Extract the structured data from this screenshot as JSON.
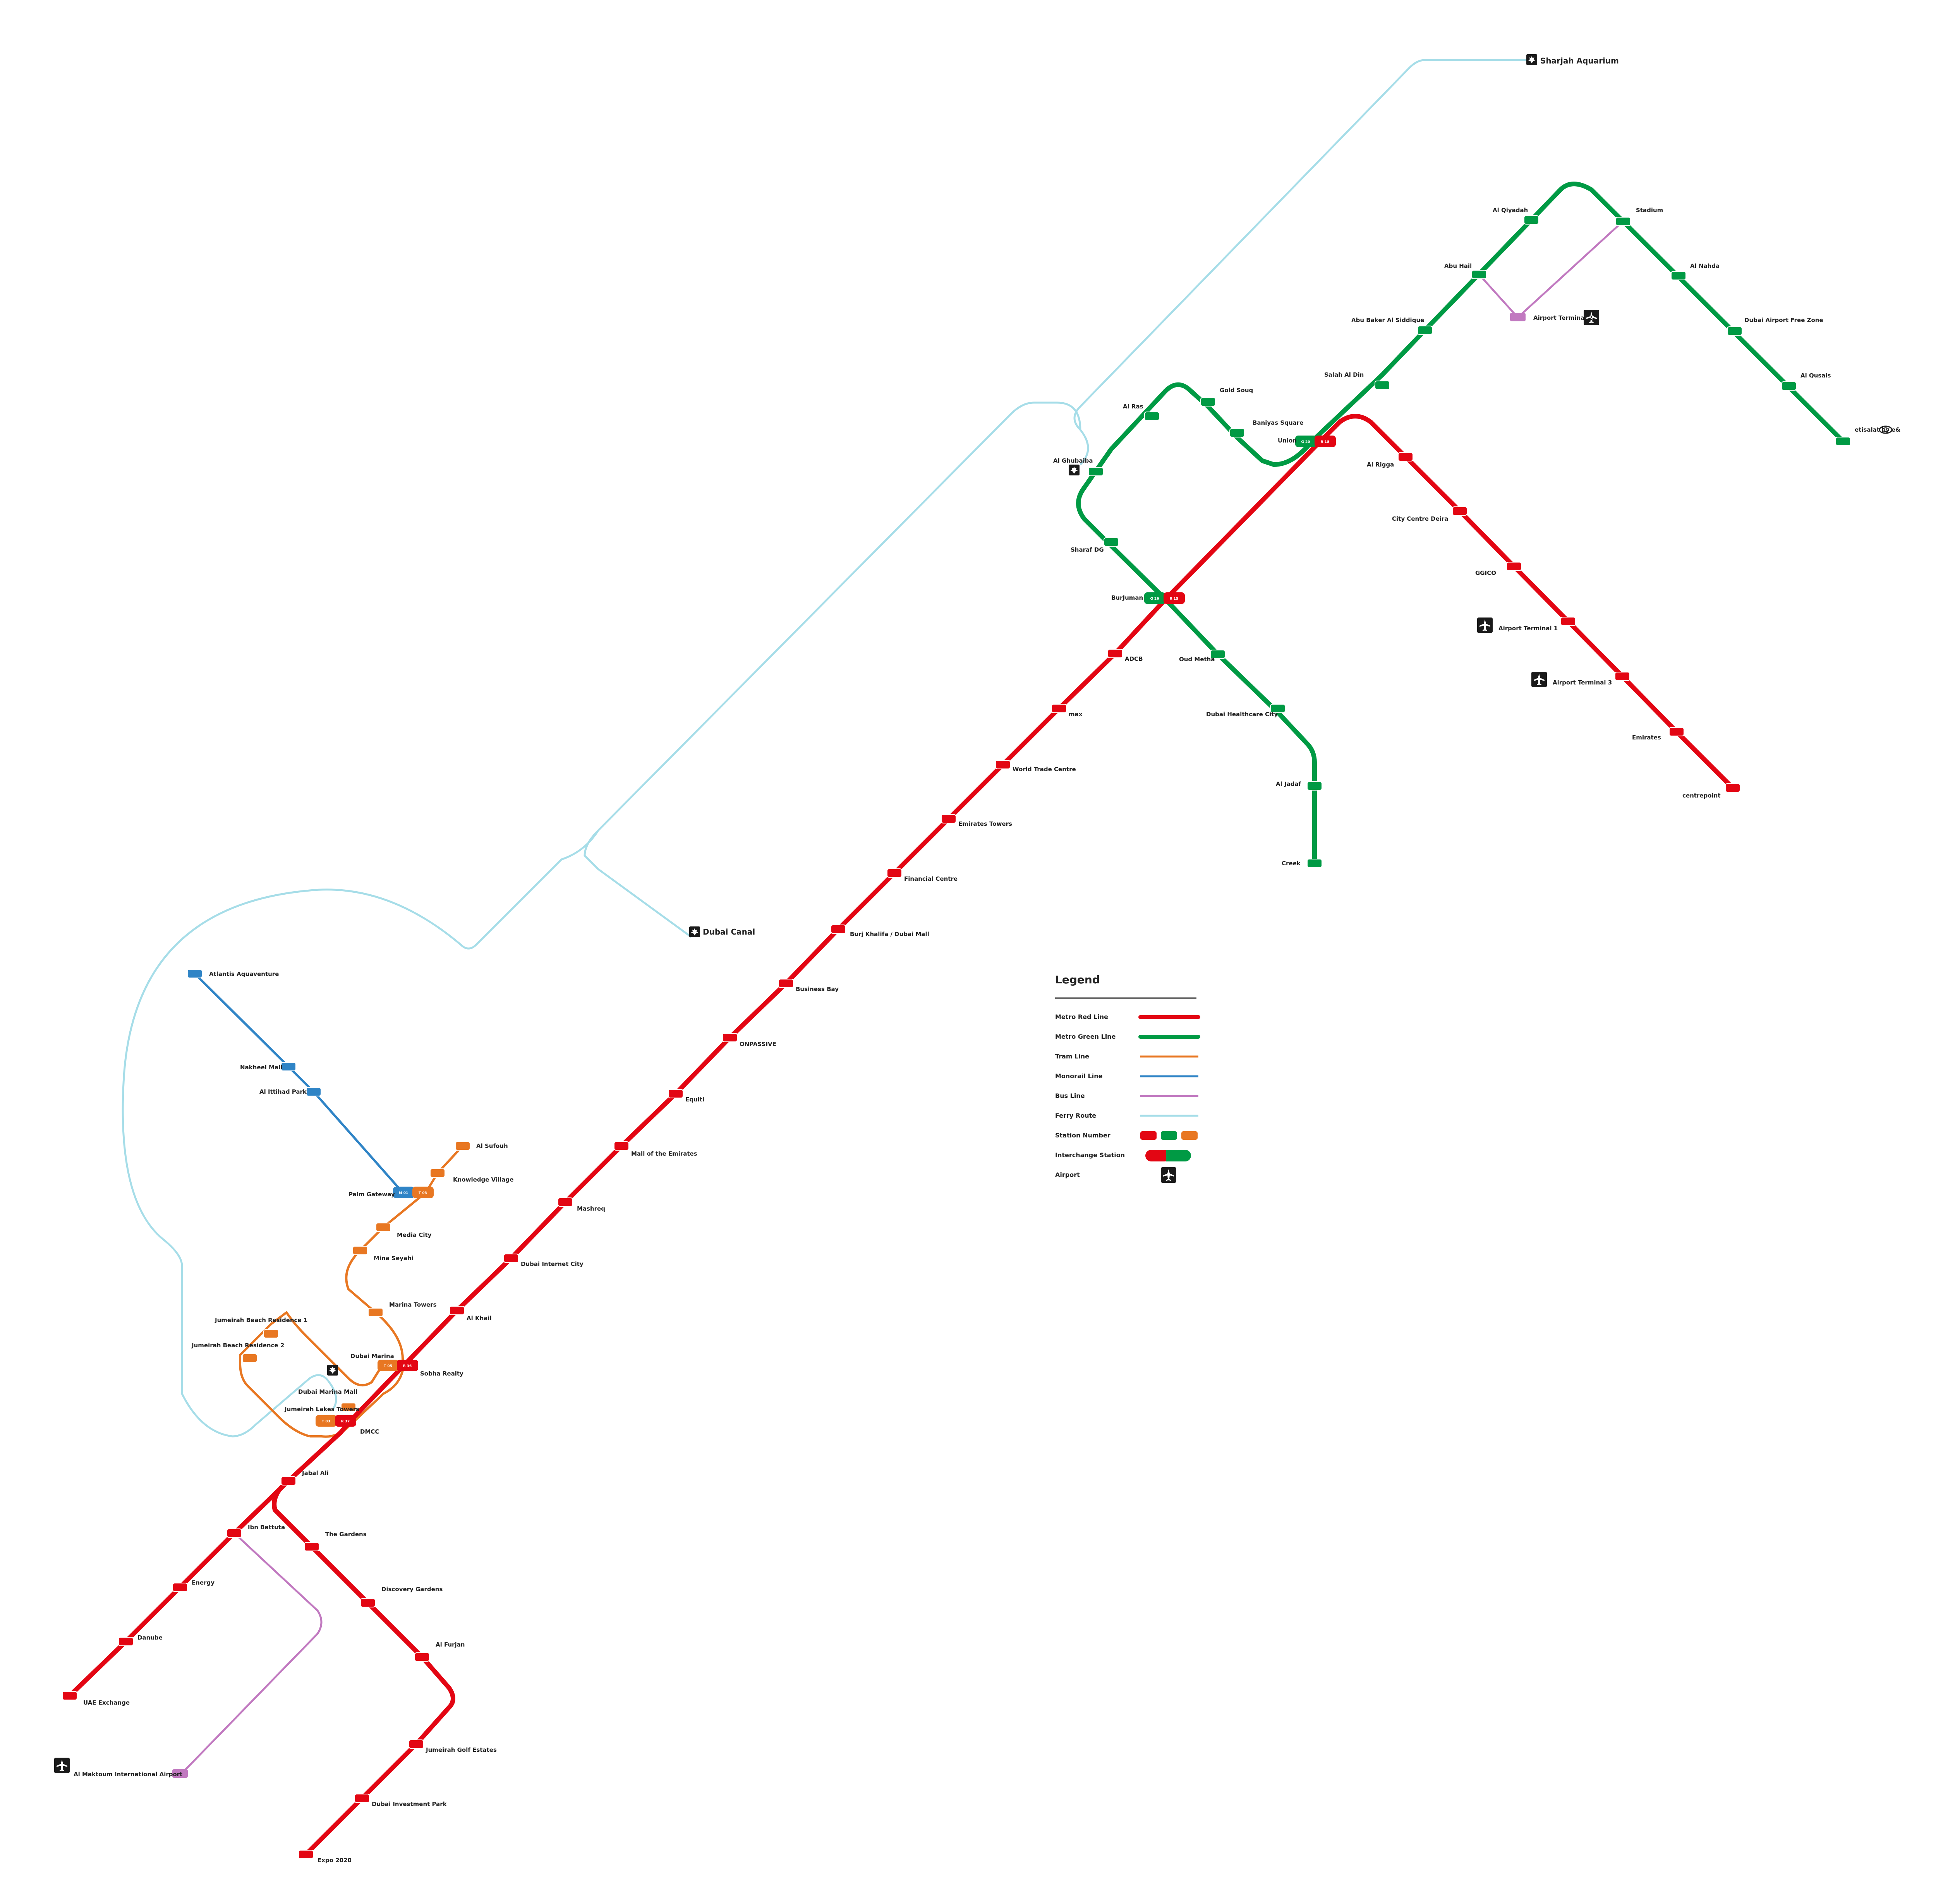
{
  "colors": {
    "red": "#e30613",
    "green": "#009a44",
    "tram": "#e87722",
    "monorail": "#2f84c6",
    "bus": "#c179c0",
    "ferry": "#a6dde8"
  },
  "icons": {
    "airport": "airplane-icon",
    "ferry": "ferry-terminal-icon",
    "etisalat": "etisalat-logo"
  },
  "ferry_terminals": {
    "sharjah": "Sharjah Aquarium",
    "canal": "Dubai Canal",
    "ghubaiba": "Al Ghubaiba",
    "marina": "Dubai Marina Mall"
  },
  "red_line": {
    "centrepoint": "centrepoint",
    "emirates": "Emirates",
    "terminal3": "Airport Terminal 3",
    "terminal1": "Airport Terminal 1",
    "ggico": "GGICO",
    "city_centre_deira": "City Centre Deira",
    "al_rigga": "Al Rigga",
    "union": "Union",
    "burjuman": "BurJuman",
    "adcb": "ADCB",
    "max": "max",
    "world_trade_centre": "World Trade Centre",
    "emirates_towers": "Emirates Towers",
    "financial_centre": "Financial Centre",
    "burj_khalifa": "Burj Khalifa / Dubai Mall",
    "business_bay": "Business Bay",
    "onpassive": "ONPASSIVE",
    "equiti": "Equiti",
    "mall_of_emirates": "Mall of the Emirates",
    "mashreq": "Mashreq",
    "dubai_internet_city": "Dubai Internet City",
    "al_khail": "Al Khail",
    "sobha_realty": "Sobha Realty",
    "dmcc": "DMCC",
    "jabal_ali": "Jabal Ali",
    "ibn_battuta": "Ibn Battuta",
    "energy": "Energy",
    "danube": "Danube",
    "uae_exchange": "UAE Exchange",
    "the_gardens": "The Gardens",
    "discovery_gardens": "Discovery Gardens",
    "al_furjan": "Al Furjan",
    "jumeirah_golf_estates": "Jumeirah Golf Estates",
    "dubai_investment_park": "Dubai Investment Park",
    "expo_2020": "Expo 2020"
  },
  "green_line": {
    "etisalat": "etisalat by e&",
    "al_qusais": "Al Qusais",
    "dubai_airport_free_zone": "Dubai Airport Free Zone",
    "al_nahda": "Al Nahda",
    "stadium": "Stadium",
    "al_qiyadah": "Al Qiyadah",
    "abu_hail": "Abu Hail",
    "abu_baker": "Abu Baker Al Siddique",
    "salah_al_din": "Salah Al Din",
    "baniyas_square": "Baniyas Square",
    "gold_souq": "Gold Souq",
    "al_ras": "Al Ras",
    "al_ghubaiba": "Al Ghubaiba",
    "sharaf_dg": "Sharaf DG",
    "oud_metha": "Oud Metha",
    "dubai_healthcare_city": "Dubai Healthcare City",
    "al_jadaf": "Al Jadaf",
    "creek": "Creek"
  },
  "tram": {
    "al_sufouh": "Al Sufouh",
    "knowledge_village": "Knowledge Village",
    "palm_gateway": "Palm Gateway",
    "media_city": "Media City",
    "mina_seyahi": "Mina Seyahi",
    "marina_towers": "Marina Towers",
    "jbr1": "Jumeirah Beach Residence 1",
    "jbr2": "Jumeirah Beach Residence 2",
    "dubai_marina": "Dubai Marina",
    "jlt": "Jumeirah Lakes Towers"
  },
  "monorail": {
    "atlantis": "Atlantis Aquaventure",
    "nakheel_mall": "Nakheel Mall",
    "al_ittihad_park": "Al Ittihad Park"
  },
  "bus": {
    "terminal2": "Airport Terminal 2",
    "al_maktoum": "Al Maktoum International Airport"
  },
  "legend": {
    "title": "Legend",
    "metro_red": "Metro Red Line",
    "metro_green": "Metro Green Line",
    "tram": "Tram Line",
    "monorail": "Monorail Line",
    "bus": "Bus Line",
    "ferry": "Ferry Route",
    "station_number": "Station Number",
    "interchange": "Interchange Station",
    "airport": "Airport"
  }
}
